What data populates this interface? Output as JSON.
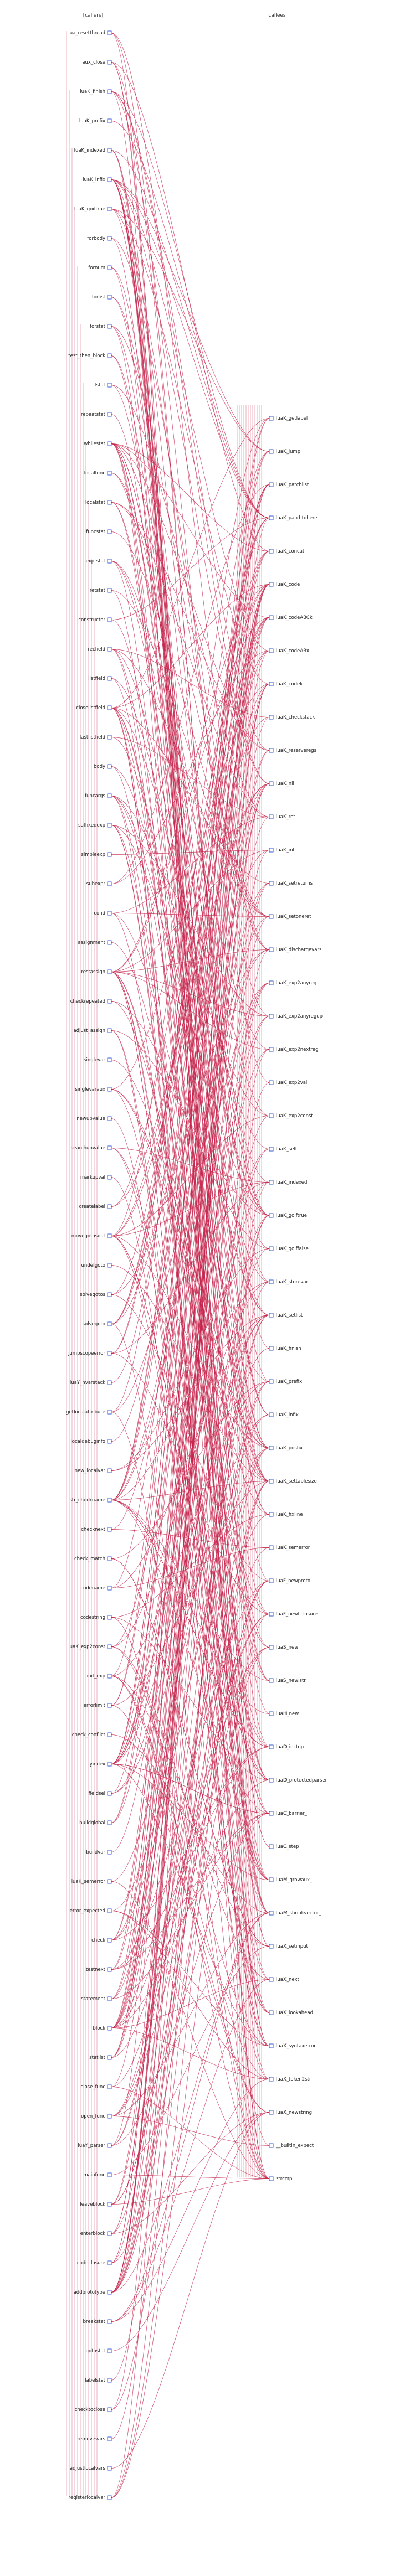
{
  "headers": {
    "callers": "[callers]",
    "callees": "callees"
  },
  "callers": [
    "lua_resetthread",
    "aux_close",
    "luaK_finish",
    "luaK_prefix",
    "luaK_indexed",
    "luaK_infix",
    "luaK_goiftrue",
    "forbody",
    "fornum",
    "forlist",
    "forstat",
    "test_then_block",
    "ifstat",
    "repeatstat",
    "whilestat",
    "localfunc",
    "localstat",
    "funcstat",
    "exprstat",
    "retstat",
    "constructor",
    "recfield",
    "listfield",
    "closelistfield",
    "lastlistfield",
    "body",
    "funcargs",
    "suffixedexp",
    "simpleexp",
    "subexpr",
    "cond",
    "assignment",
    "restassign",
    "checkrepeated",
    "adjust_assign",
    "singlevar",
    "singlevaraux",
    "newupvalue",
    "searchupvalue",
    "markupval",
    "createlabel",
    "movegotosout",
    "undefgoto",
    "solvegotos",
    "solvegoto",
    "jumpscopeerror",
    "luaY_nvarstack",
    "getlocalattribute",
    "localdebuginfo",
    "new_localvar",
    "str_checkname",
    "checknext",
    "check_match",
    "codename",
    "codestring",
    "luaK_exp2const",
    "init_exp",
    "errorlimit",
    "check_conflict",
    "yindex",
    "fieldsel",
    "buildglobal",
    "buildvar",
    "luaK_semerror",
    "error_expected",
    "check",
    "testnext",
    "statement",
    "block",
    "statlist",
    "close_func",
    "open_func",
    "luaY_parser",
    "mainfunc",
    "leaveblock",
    "enterblock",
    "codeclosure",
    "addprototype",
    "breakstat",
    "gotostat",
    "labelstat",
    "checktoclose",
    "removevars",
    "adjustlocalvars",
    "registerlocalvar"
  ],
  "callees": [
    "luaK_getlabel",
    "luaK_jump",
    "luaK_patchlist",
    "luaK_patchtohere",
    "luaK_concat",
    "luaK_code",
    "luaK_codeABCk",
    "luaK_codeABx",
    "luaK_codek",
    "luaK_checkstack",
    "luaK_reserveregs",
    "luaK_nil",
    "luaK_ret",
    "luaK_int",
    "luaK_setreturns",
    "luaK_setoneret",
    "luaK_dischargevars",
    "luaK_exp2anyreg",
    "luaK_exp2anyregup",
    "luaK_exp2nextreg",
    "luaK_exp2val",
    "luaK_exp2const",
    "luaK_self",
    "luaK_indexed",
    "luaK_goiftrue",
    "luaK_goiffalse",
    "luaK_storevar",
    "luaK_setlist",
    "luaK_finish",
    "luaK_prefix",
    "luaK_infix",
    "luaK_posfix",
    "luaK_settablesize",
    "luaK_fixline",
    "luaK_semerror",
    "luaF_newproto",
    "luaF_newLclosure",
    "luaS_new",
    "luaS_newlstr",
    "luaH_new",
    "luaD_inctop",
    "luaD_protectedparser",
    "luaC_barrier_",
    "luaC_step",
    "luaM_growaux_",
    "luaM_shrinkvector_",
    "luaX_setinput",
    "luaX_next",
    "luaX_lookahead",
    "luaX_syntaxerror",
    "luaX_token2str",
    "luaX_newstring",
    "__builtin_expect",
    "strcmp"
  ],
  "colors": {
    "edge": "#c4234b",
    "port": "#3355dd",
    "text": "#222222"
  }
}
